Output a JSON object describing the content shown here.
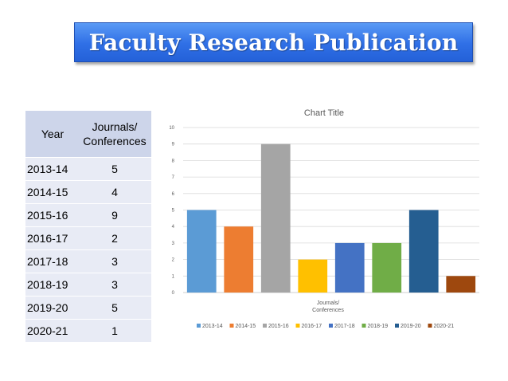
{
  "header": {
    "title": "Faculty Research Publication"
  },
  "table": {
    "col_year": "Year",
    "col_count": "Journals/ Conferences",
    "rows": [
      {
        "year": "2013-14",
        "count": "5"
      },
      {
        "year": "2014-15",
        "count": "4"
      },
      {
        "year": "2015-16",
        "count": "9"
      },
      {
        "year": "2016-17",
        "count": "2"
      },
      {
        "year": "2017-18",
        "count": "3"
      },
      {
        "year": "2018-19",
        "count": "3"
      },
      {
        "year": "2019-20",
        "count": "5"
      },
      {
        "year": "2020-21",
        "count": "1"
      }
    ]
  },
  "chart_data": {
    "type": "bar",
    "title": "Chart Title",
    "xlabel": "Journals/ Conferences",
    "ylabel": "",
    "ylim": [
      0,
      10
    ],
    "yticks": [
      0,
      1,
      2,
      3,
      4,
      5,
      6,
      7,
      8,
      9,
      10
    ],
    "grid": true,
    "legend_position": "bottom",
    "series": [
      {
        "name": "2013-14",
        "value": 5,
        "color": "#5b9bd5"
      },
      {
        "name": "2014-15",
        "value": 4,
        "color": "#ed7d31"
      },
      {
        "name": "2015-16",
        "value": 9,
        "color": "#a5a5a5"
      },
      {
        "name": "2016-17",
        "value": 2,
        "color": "#ffc000"
      },
      {
        "name": "2017-18",
        "value": 3,
        "color": "#4472c4"
      },
      {
        "name": "2018-19",
        "value": 3,
        "color": "#70ad47"
      },
      {
        "name": "2019-20",
        "value": 5,
        "color": "#255e91"
      },
      {
        "name": "2020-21",
        "value": 1,
        "color": "#9e480e"
      }
    ]
  }
}
